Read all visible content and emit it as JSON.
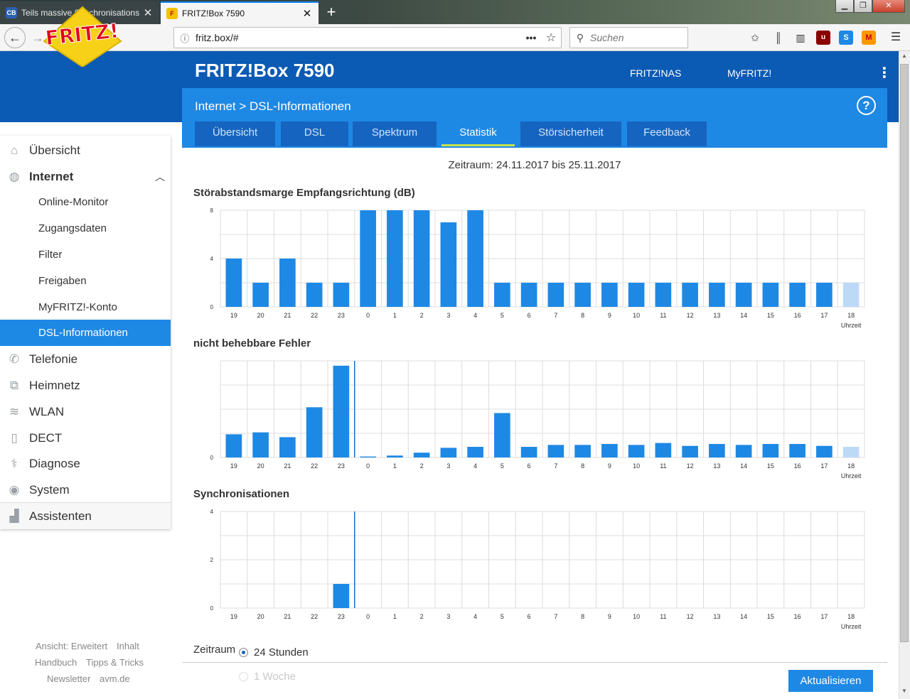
{
  "browser": {
    "tabs": [
      {
        "title": "Teils massive Synchronisations",
        "favicon": "CB"
      },
      {
        "title": "FRITZ!Box 7590",
        "favicon": "F"
      }
    ],
    "url": "fritz.box/#",
    "search_placeholder": "Suchen"
  },
  "header": {
    "logo_text": "FRITZ!",
    "title": "FRITZ!Box 7590",
    "nav": [
      "FRITZ!NAS",
      "MyFRITZ!"
    ],
    "breadcrumb": "Internet > DSL-Informationen",
    "help": "?"
  },
  "content_tabs": [
    "Übersicht",
    "DSL",
    "Spektrum",
    "Statistik",
    "Störsicherheit",
    "Feedback"
  ],
  "sidebar": {
    "items": [
      {
        "label": "Übersicht",
        "icon": "home-icon"
      },
      {
        "label": "Internet",
        "icon": "globe-icon"
      },
      {
        "label": "Online-Monitor"
      },
      {
        "label": "Zugangsdaten"
      },
      {
        "label": "Filter"
      },
      {
        "label": "Freigaben"
      },
      {
        "label": "MyFRITZ!-Konto"
      },
      {
        "label": "DSL-Informationen"
      },
      {
        "label": "Telefonie",
        "icon": "phone-icon"
      },
      {
        "label": "Heimnetz",
        "icon": "network-icon"
      },
      {
        "label": "WLAN",
        "icon": "wifi-icon"
      },
      {
        "label": "DECT",
        "icon": "dect-phone-icon"
      },
      {
        "label": "Diagnose",
        "icon": "stethoscope-icon"
      },
      {
        "label": "System",
        "icon": "system-icon"
      },
      {
        "label": "Assistenten",
        "icon": "wizard-icon"
      }
    ],
    "footer": [
      "Ansicht: Erweitert",
      "Inhalt",
      "Handbuch",
      "Tipps & Tricks",
      "Newsletter",
      "avm.de"
    ]
  },
  "main": {
    "period": "Zeitraum: 24.11.2017 bis 25.11.2017",
    "zeitraum_label": "Zeitraum",
    "radio_24h": "24 Stunden",
    "radio_week": "1 Woche",
    "refresh_button": "Aktualisieren"
  },
  "colors": {
    "bar": "#1e88e5",
    "bar_faded": "#bcdaf6",
    "grid": "#dcdcdc",
    "marker": "#1565c0"
  },
  "chart_data": [
    {
      "type": "bar",
      "title": "Störabstandsmarge Empfangsrichtung (dB)",
      "xlabel": "Uhrzeit",
      "categories": [
        "19",
        "20",
        "21",
        "22",
        "23",
        "0",
        "1",
        "2",
        "3",
        "4",
        "5",
        "6",
        "7",
        "8",
        "9",
        "10",
        "11",
        "12",
        "13",
        "14",
        "15",
        "16",
        "17",
        "18"
      ],
      "values": [
        4,
        2,
        4,
        2,
        2,
        8,
        8,
        8,
        7,
        8,
        2,
        2,
        2,
        2,
        2,
        2,
        2,
        2,
        2,
        2,
        2,
        2,
        2,
        2
      ],
      "yticks": [
        0,
        4,
        8
      ],
      "ylim": [
        0,
        8
      ],
      "grid": true
    },
    {
      "type": "bar",
      "title": "nicht behebbare Fehler",
      "xlabel": "Uhrzeit",
      "categories": [
        "19",
        "20",
        "21",
        "22",
        "23",
        "0",
        "1",
        "2",
        "3",
        "4",
        "5",
        "6",
        "7",
        "8",
        "9",
        "10",
        "11",
        "12",
        "13",
        "14",
        "15",
        "16",
        "17",
        "18"
      ],
      "values": [
        24,
        26,
        21,
        52,
        95,
        1,
        2,
        5,
        10,
        11,
        46,
        11,
        13,
        13,
        14,
        13,
        15,
        12,
        14,
        13,
        14,
        14,
        12,
        11
      ],
      "yticks": [
        0
      ],
      "ylim": [
        0,
        100
      ],
      "marker_at": "0",
      "grid": true
    },
    {
      "type": "bar",
      "title": "Synchronisationen",
      "xlabel": "Uhrzeit",
      "categories": [
        "19",
        "20",
        "21",
        "22",
        "23",
        "0",
        "1",
        "2",
        "3",
        "4",
        "5",
        "6",
        "7",
        "8",
        "9",
        "10",
        "11",
        "12",
        "13",
        "14",
        "15",
        "16",
        "17",
        "18"
      ],
      "values": [
        0,
        0,
        0,
        0,
        1,
        0,
        0,
        0,
        0,
        0,
        0,
        0,
        0,
        0,
        0,
        0,
        0,
        0,
        0,
        0,
        0,
        0,
        0,
        0
      ],
      "yticks": [
        0,
        2,
        4
      ],
      "ylim": [
        0,
        4
      ],
      "marker_at": "0",
      "grid": true
    }
  ]
}
